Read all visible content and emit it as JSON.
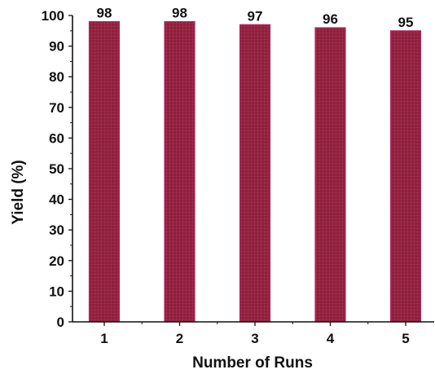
{
  "chart_data": {
    "type": "bar",
    "title": "",
    "xlabel": "Number of Runs",
    "ylabel": "Yield (%)",
    "categories": [
      "1",
      "2",
      "3",
      "4",
      "5"
    ],
    "values": [
      98,
      98,
      97,
      96,
      95
    ],
    "data_labels": [
      "98",
      "98",
      "97",
      "96",
      "95"
    ],
    "ylim": [
      0,
      100
    ],
    "y_ticks": [
      0,
      10,
      20,
      30,
      40,
      50,
      60,
      70,
      80,
      90,
      100
    ],
    "grid": false,
    "legend": false,
    "colors": {
      "bar_fill": "#8f1e3a",
      "bar_edge": "#b02a66",
      "axis": "#111111",
      "text": "#111111"
    }
  }
}
